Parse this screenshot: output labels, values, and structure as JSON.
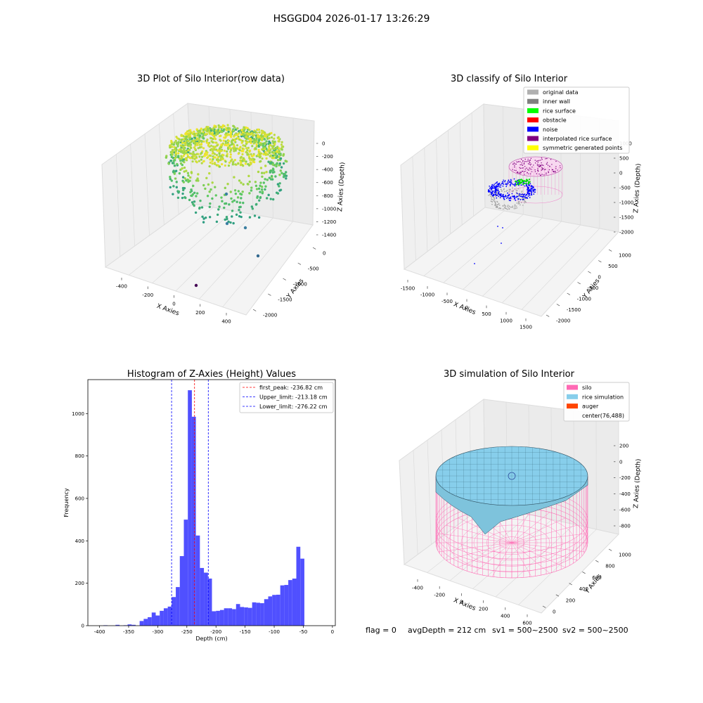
{
  "figure": {
    "suptitle": "HSGGD04 2026-01-17 13:26:29",
    "footer": {
      "flag": "flag = 0",
      "avg_depth": "avgDepth = 212 cm",
      "sv1": "sv1 = 500~2500",
      "sv2": "sv2 = 500~2500"
    }
  },
  "chart_data": [
    {
      "type": "scatter",
      "projection": "3d",
      "title": "3D Plot of Silo Interior(row data)",
      "xlabel": "X Axies",
      "ylabel": "Y Axies",
      "zlabel": "Z Axies (Depth)",
      "x_ticks": [
        "-400",
        "-200",
        "0",
        "200",
        "400"
      ],
      "y_ticks": [
        "0",
        "-500",
        "-1000",
        "-1500",
        "-2000"
      ],
      "z_ticks": [
        "0",
        "-200",
        "-400",
        "-600",
        "-800",
        "-1000",
        "-1200",
        "-1400"
      ],
      "colormap": "viridis",
      "outliers": [
        {
          "z": -1000,
          "color": "#3b7fa1"
        },
        {
          "z": -1040,
          "color": "#3b7fa1"
        },
        {
          "z": -1200,
          "color": "#31688e"
        },
        {
          "z": -1450,
          "color": "#440154"
        }
      ]
    },
    {
      "type": "scatter",
      "projection": "3d",
      "title": "3D classify of Silo Interior",
      "xlabel": "X Axies",
      "ylabel": "Y Axies",
      "zlabel": "Z Axies (Depth)",
      "x_ticks": [
        "-1500",
        "-1000",
        "-500",
        "0",
        "500",
        "1000",
        "1500"
      ],
      "y_ticks": [
        "1000",
        "500",
        "0",
        "-500",
        "-1000",
        "-1500",
        "-2000"
      ],
      "z_ticks": [
        "1000",
        "500",
        "0",
        "-500",
        "-1000",
        "-1500",
        "-2000"
      ],
      "legend_position": "top-right",
      "legend": [
        {
          "label": "original data",
          "color": "#b0b0b0"
        },
        {
          "label": "inner wall",
          "color": "#808080"
        },
        {
          "label": "rice surface",
          "color": "#00ff00"
        },
        {
          "label": "obstacle",
          "color": "#ff0000"
        },
        {
          "label": "noise",
          "color": "#0000ff"
        },
        {
          "label": "interpolated rice surface",
          "color": "#800080"
        },
        {
          "label": "symmetric generated points",
          "color": "#ffff00"
        }
      ]
    },
    {
      "type": "bar",
      "title": "Histogram of Z-Axies (Height) Values",
      "xlabel": "Depth (cm)",
      "ylabel": "Frequency",
      "xlim": [
        -420,
        5
      ],
      "ylim": [
        0,
        1160
      ],
      "x_ticks": [
        -400,
        -350,
        -300,
        -250,
        -200,
        -150,
        -100,
        -50,
        0
      ],
      "y_ticks": [
        0,
        200,
        400,
        600,
        800,
        1000
      ],
      "bar_color": "#5050ff",
      "bin_width": 6.9,
      "bin_start": -407,
      "values": [
        0,
        0,
        2,
        0,
        0,
        4,
        0,
        2,
        6,
        4,
        0,
        22,
        32,
        40,
        62,
        48,
        70,
        82,
        90,
        135,
        182,
        328,
        500,
        1110,
        985,
        425,
        272,
        250,
        222,
        68,
        70,
        74,
        82,
        82,
        78,
        102,
        88,
        86,
        84,
        110,
        108,
        106,
        125,
        138,
        145,
        146,
        190,
        192,
        215,
        222,
        372,
        316
      ],
      "legend_position": "top-right",
      "lines": [
        {
          "label": "first_peak: -236.82 cm",
          "x": -236.82,
          "color": "#ff0000"
        },
        {
          "label": "Upper_limit: -213.18 cm",
          "x": -213.18,
          "color": "#0000ff"
        },
        {
          "label": "Lower_limit: -276.22 cm",
          "x": -276.22,
          "color": "#0000ff"
        }
      ]
    },
    {
      "type": "surface",
      "projection": "3d",
      "title": "3D simulation of Silo Interior",
      "xlabel": "X Axies",
      "ylabel": "Y Axies",
      "zlabel": "Z Axies (Depth)",
      "x_ticks": [
        "-400",
        "-200",
        "0",
        "200",
        "400",
        "600"
      ],
      "y_ticks": [
        "0",
        "200",
        "400",
        "600",
        "800",
        "1000"
      ],
      "z_ticks": [
        "200",
        "0",
        "-200",
        "-400",
        "-600",
        "-800"
      ],
      "legend_position": "top-right",
      "legend": [
        {
          "label": "silo",
          "color": "#ff69b4"
        },
        {
          "label": "rice simulation",
          "color": "#87ceeb"
        },
        {
          "label": "auger",
          "color": "#ff4500"
        },
        {
          "label": "center(76,488)",
          "color": ""
        }
      ]
    }
  ]
}
